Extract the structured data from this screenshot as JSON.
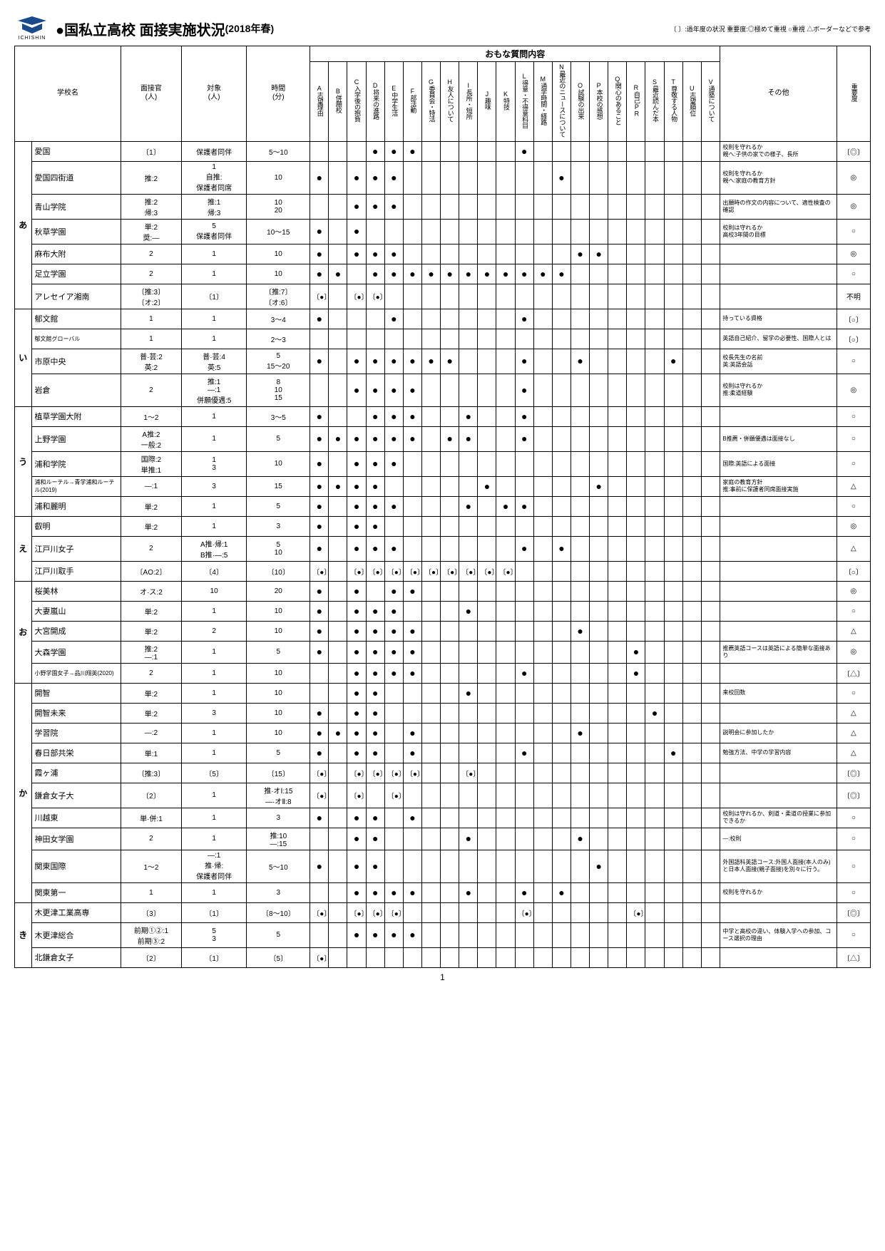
{
  "header": {
    "logo_text": "ICHISHIN",
    "title": "●国私立高校 面接実施状況",
    "subtitle": "(2018年春)",
    "legend": "〔 〕:過年度の状況  重要度:◎極めて重視  ○重視  △ボーダーなどで参考"
  },
  "columns": {
    "school": "学校名",
    "interviewer": "面接官\n(人)",
    "subject": "対象\n(人)",
    "time": "時間\n(分)",
    "question_header": "おもな質問内容",
    "other": "その他",
    "importance": "重要度",
    "questions": [
      {
        "code": "A",
        "label": "志望理由"
      },
      {
        "code": "B",
        "label": "併願校"
      },
      {
        "code": "C",
        "label": "入学後の抱負"
      },
      {
        "code": "D",
        "label": "将来の進路"
      },
      {
        "code": "E",
        "label": "中学生活"
      },
      {
        "code": "F",
        "label": "部活動"
      },
      {
        "code": "G",
        "label": "委員会・特活"
      },
      {
        "code": "H",
        "label": "友人について"
      },
      {
        "code": "I",
        "label": "長所・短所"
      },
      {
        "code": "J",
        "label": "趣味"
      },
      {
        "code": "K",
        "label": "特技"
      },
      {
        "code": "L",
        "label": "得意・不得意科目"
      },
      {
        "code": "M",
        "label": "通学時間・経路"
      },
      {
        "code": "N",
        "label": "最近のニュースについて"
      },
      {
        "code": "O",
        "label": "試験の出来"
      },
      {
        "code": "P",
        "label": "本校の感想"
      },
      {
        "code": "Q",
        "label": "関心のあること"
      },
      {
        "code": "R",
        "label": "自己PR"
      },
      {
        "code": "S",
        "label": "最近読んだ本"
      },
      {
        "code": "T",
        "label": "尊敬する人物"
      },
      {
        "code": "U",
        "label": "志望順位"
      },
      {
        "code": "V",
        "label": "通塾について"
      }
    ]
  },
  "kana_groups": [
    "あ",
    "い",
    "う",
    "え",
    "お",
    "か",
    "き"
  ],
  "marks": {
    "dot": "●",
    "br_dot": "〔●〕"
  },
  "rows": [
    {
      "kana": "あ",
      "school": "愛国",
      "interviewer": "〔1〕",
      "subject": "保護者同伴",
      "time": "5～10",
      "q": {
        "D": "●",
        "E": "●",
        "F": "●",
        "L": "●"
      },
      "other": "校則を守れるか\n親へ:子供の家での様子、長所",
      "imp": "〔◎〕"
    },
    {
      "school": "愛国四街道",
      "interviewer": "推:2",
      "subject": "1\n自推:\n保護者同席",
      "time": "10",
      "q": {
        "A": "●",
        "C": "●",
        "D": "●",
        "E": "●",
        "N": "●"
      },
      "other": "校則を守れるか\n親へ:家庭の教育方針",
      "imp": "◎"
    },
    {
      "school": "青山学院",
      "interviewer": "推:2\n帰:3",
      "subject": "推:1\n帰:3",
      "time": "10\n20",
      "q": {
        "C": "●",
        "D": "●",
        "E": "●"
      },
      "other": "出願時の作文の内容について、適性検査の確認",
      "imp": "◎"
    },
    {
      "school": "秋草学園",
      "interviewer": "単:2\n奨:―",
      "subject": "5\n保護者同伴",
      "time": "10～15",
      "q": {
        "A": "●",
        "C": "●"
      },
      "other": "校則は守れるか\n高校3年間の目標",
      "imp": "○"
    },
    {
      "school": "麻布大附",
      "interviewer": "2",
      "subject": "1",
      "time": "10",
      "q": {
        "A": "●",
        "C": "●",
        "D": "●",
        "E": "●",
        "O": "●",
        "P": "●"
      },
      "other": "",
      "imp": "◎"
    },
    {
      "school": "足立学園",
      "interviewer": "2",
      "subject": "1",
      "time": "10",
      "q": {
        "A": "●",
        "B": "●",
        "D": "●",
        "E": "●",
        "F": "●",
        "G": "●",
        "H": "●",
        "I": "●",
        "J": "●",
        "K": "●",
        "L": "●",
        "M": "●",
        "N": "●"
      },
      "other": "",
      "imp": "○"
    },
    {
      "school": "アレセイア湘南",
      "interviewer": "〔推:3〕\n〔オ:2〕",
      "subject": "〔1〕",
      "time": "〔推:7〕\n〔オ:6〕",
      "q": {
        "A": "〔●〕",
        "C": "〔●〕",
        "D": "〔●〕"
      },
      "other": "",
      "imp": "不明"
    },
    {
      "kana": "い",
      "school": "郁文館",
      "interviewer": "1",
      "subject": "1",
      "time": "3～4",
      "q": {
        "A": "●",
        "E": "●",
        "L": "●"
      },
      "other": "持っている資格",
      "imp": "〔○〕"
    },
    {
      "school": "郁文館グローバル",
      "sub": true,
      "interviewer": "1",
      "subject": "1",
      "time": "2～3",
      "q": {},
      "other": "英語自己紹介、留学の必要性、国際人とは",
      "imp": "〔○〕"
    },
    {
      "school": "市原中央",
      "interviewer": "普·芸:2\n英:2",
      "subject": "普·芸:4\n英:5",
      "time": "5\n15～20",
      "q": {
        "A": "●",
        "C": "●",
        "D": "●",
        "E": "●",
        "F": "●",
        "G": "●",
        "H": "●",
        "L": "●",
        "O": "●",
        "T": "●"
      },
      "other": "校長先生の名前\n英:英語会話",
      "imp": "○"
    },
    {
      "school": "岩倉",
      "interviewer": "2",
      "subject": "推:1\n―:1\n併願優遇:5",
      "time": "8\n10\n15",
      "q": {
        "C": "●",
        "D": "●",
        "E": "●",
        "F": "●",
        "L": "●"
      },
      "other": "校則は守れるか\n推:柔道経験",
      "imp": "◎"
    },
    {
      "kana": "う",
      "school": "植草学園大附",
      "interviewer": "1～2",
      "subject": "1",
      "time": "3～5",
      "q": {
        "A": "●",
        "D": "●",
        "E": "●",
        "F": "●",
        "I": "●",
        "L": "●"
      },
      "other": "",
      "imp": "○"
    },
    {
      "school": "上野学園",
      "interviewer": "A推:2\n一般:2",
      "subject": "1",
      "time": "5",
      "q": {
        "A": "●",
        "B": "●",
        "C": "●",
        "D": "●",
        "E": "●",
        "F": "●",
        "H": "●",
        "I": "●",
        "L": "●"
      },
      "other": "B推薦・併願優遇は面接なし",
      "imp": "○"
    },
    {
      "school": "浦和学院",
      "interviewer": "国際:2\n単推:1",
      "subject": "1\n3",
      "time": "10",
      "q": {
        "A": "●",
        "C": "●",
        "D": "●",
        "E": "●"
      },
      "other": "国際:英語による面接",
      "imp": "○"
    },
    {
      "school": "浦和ルーテル→青学浦和ルーテル(2019)",
      "sub": true,
      "interviewer": "―:1",
      "subject": "3",
      "time": "15",
      "q": {
        "A": "●",
        "B": "●",
        "C": "●",
        "D": "●",
        "J": "●",
        "P": "●"
      },
      "other": "家庭の教育方針\n推:事前に保護者同席面接実施",
      "imp": "△"
    },
    {
      "school": "浦和麗明",
      "interviewer": "単:2",
      "subject": "1",
      "time": "5",
      "q": {
        "A": "●",
        "C": "●",
        "D": "●",
        "E": "●",
        "I": "●",
        "K": "●",
        "L": "●"
      },
      "other": "",
      "imp": "○"
    },
    {
      "kana": "え",
      "school": "叡明",
      "interviewer": "単:2",
      "subject": "1",
      "time": "3",
      "q": {
        "A": "●",
        "C": "●",
        "D": "●"
      },
      "other": "",
      "imp": "◎"
    },
    {
      "school": "江戸川女子",
      "interviewer": "2",
      "subject": "A推·帰:1\nB推·―:5",
      "time": "5\n10",
      "q": {
        "A": "●",
        "C": "●",
        "D": "●",
        "E": "●",
        "L": "●",
        "N": "●"
      },
      "other": "",
      "imp": "△"
    },
    {
      "school": "江戸川取手",
      "interviewer": "〔AO:2〕",
      "subject": "〔4〕",
      "time": "〔10〕",
      "q": {
        "A": "〔●〕",
        "C": "〔●〕",
        "D": "〔●〕",
        "E": "〔●〕",
        "F": "〔●〕",
        "G": "〔●〕",
        "H": "〔●〕",
        "I": "〔●〕",
        "J": "〔●〕",
        "K": "〔●〕"
      },
      "other": "",
      "imp": "〔○〕"
    },
    {
      "kana": "お",
      "school": "桜美林",
      "interviewer": "オ·ス:2",
      "subject": "10",
      "time": "20",
      "q": {
        "A": "●",
        "C": "●",
        "E": "●",
        "F": "●"
      },
      "other": "",
      "imp": "◎"
    },
    {
      "school": "大妻嵐山",
      "interviewer": "単:2",
      "subject": "1",
      "time": "10",
      "q": {
        "A": "●",
        "C": "●",
        "D": "●",
        "E": "●",
        "I": "●"
      },
      "other": "",
      "imp": "○"
    },
    {
      "school": "大宮開成",
      "interviewer": "単:2",
      "subject": "2",
      "time": "10",
      "q": {
        "A": "●",
        "C": "●",
        "D": "●",
        "E": "●",
        "F": "●",
        "O": "●"
      },
      "other": "",
      "imp": "△"
    },
    {
      "school": "大森学園",
      "interviewer": "推:2\n―:1",
      "subject": "1",
      "time": "5",
      "q": {
        "A": "●",
        "C": "●",
        "D": "●",
        "E": "●",
        "F": "●",
        "R": "●"
      },
      "other": "推薦英語コースは英語による簡単な面接あり",
      "imp": "◎"
    },
    {
      "school": "小野学園女子→品川翔英(2020)",
      "sub": true,
      "interviewer": "2",
      "subject": "1",
      "time": "10",
      "q": {
        "C": "●",
        "D": "●",
        "E": "●",
        "F": "●",
        "L": "●",
        "R": "●"
      },
      "other": "",
      "imp": "〔△〕"
    },
    {
      "kana": "か",
      "school": "開智",
      "interviewer": "単:2",
      "subject": "1",
      "time": "10",
      "q": {
        "C": "●",
        "D": "●",
        "I": "●"
      },
      "other": "来校回数",
      "imp": "○"
    },
    {
      "school": "開智未来",
      "interviewer": "単:2",
      "subject": "3",
      "time": "10",
      "q": {
        "A": "●",
        "C": "●",
        "D": "●",
        "S": "●"
      },
      "other": "",
      "imp": "△"
    },
    {
      "school": "学習院",
      "interviewer": "―:2",
      "subject": "1",
      "time": "10",
      "q": {
        "A": "●",
        "B": "●",
        "C": "●",
        "D": "●",
        "F": "●",
        "O": "●"
      },
      "other": "説明会に参加したか",
      "imp": "△"
    },
    {
      "school": "春日部共栄",
      "interviewer": "単:1",
      "subject": "1",
      "time": "5",
      "q": {
        "A": "●",
        "C": "●",
        "D": "●",
        "F": "●",
        "L": "●",
        "T": "●"
      },
      "other": "勉強方法、中学の学習内容",
      "imp": "△"
    },
    {
      "school": "霞ヶ浦",
      "interviewer": "〔推:3〕",
      "subject": "〔5〕",
      "time": "〔15〕",
      "q": {
        "A": "〔●〕",
        "C": "〔●〕",
        "D": "〔●〕",
        "E": "〔●〕",
        "F": "〔●〕",
        "I": "〔●〕"
      },
      "other": "",
      "imp": "〔◎〕"
    },
    {
      "school": "鎌倉女子大",
      "interviewer": "〔2〕",
      "subject": "1",
      "time": "推·オⅠ:15\n―·オⅡ:8",
      "q": {
        "A": "〔●〕",
        "C": "〔●〕",
        "E": "〔●〕"
      },
      "other": "",
      "imp": "〔◎〕"
    },
    {
      "school": "川越東",
      "interviewer": "単·併:1",
      "subject": "1",
      "time": "3",
      "q": {
        "A": "●",
        "C": "●",
        "D": "●",
        "F": "●"
      },
      "other": "校則は守れるか、剣道・柔道の授業に参加できるか",
      "imp": "○"
    },
    {
      "school": "神田女学園",
      "interviewer": "2",
      "subject": "1",
      "time": "推:10\n―:15",
      "q": {
        "C": "●",
        "D": "●",
        "I": "●",
        "O": "●"
      },
      "other": "―:校則",
      "imp": "○"
    },
    {
      "school": "関東国際",
      "interviewer": "1～2",
      "subject": "―:1\n推·帰:\n保護者同伴",
      "time": "5～10",
      "q": {
        "A": "●",
        "C": "●",
        "D": "●",
        "P": "●"
      },
      "other": "外国語科英語コース:外国人面接(本人のみ)と日本人面接(親子面接)を別々に行う。",
      "imp": "○"
    },
    {
      "school": "関東第一",
      "interviewer": "1",
      "subject": "1",
      "time": "3",
      "q": {
        "C": "●",
        "D": "●",
        "E": "●",
        "F": "●",
        "I": "●",
        "L": "●",
        "N": "●"
      },
      "other": "校則を守れるか",
      "imp": "○"
    },
    {
      "kana": "き",
      "school": "木更津工業高専",
      "interviewer": "〔3〕",
      "subject": "〔1〕",
      "time": "〔8～10〕",
      "q": {
        "A": "〔●〕",
        "C": "〔●〕",
        "D": "〔●〕",
        "E": "〔●〕",
        "L": "〔●〕",
        "R": "〔●〕"
      },
      "other": "",
      "imp": "〔◎〕"
    },
    {
      "school": "木更津総合",
      "interviewer": "前期①②:1\n前期③:2",
      "subject": "5\n3",
      "time": "5",
      "q": {
        "C": "●",
        "D": "●",
        "E": "●",
        "F": "●"
      },
      "other": "中学と高校の違い、体験入学への参加、コース選択の理由",
      "imp": "○"
    },
    {
      "school": "北鎌倉女子",
      "interviewer": "〔2〕",
      "subject": "〔1〕",
      "time": "〔5〕",
      "q": {
        "A": "〔●〕"
      },
      "other": "",
      "imp": "〔△〕"
    }
  ],
  "page_number": "1"
}
